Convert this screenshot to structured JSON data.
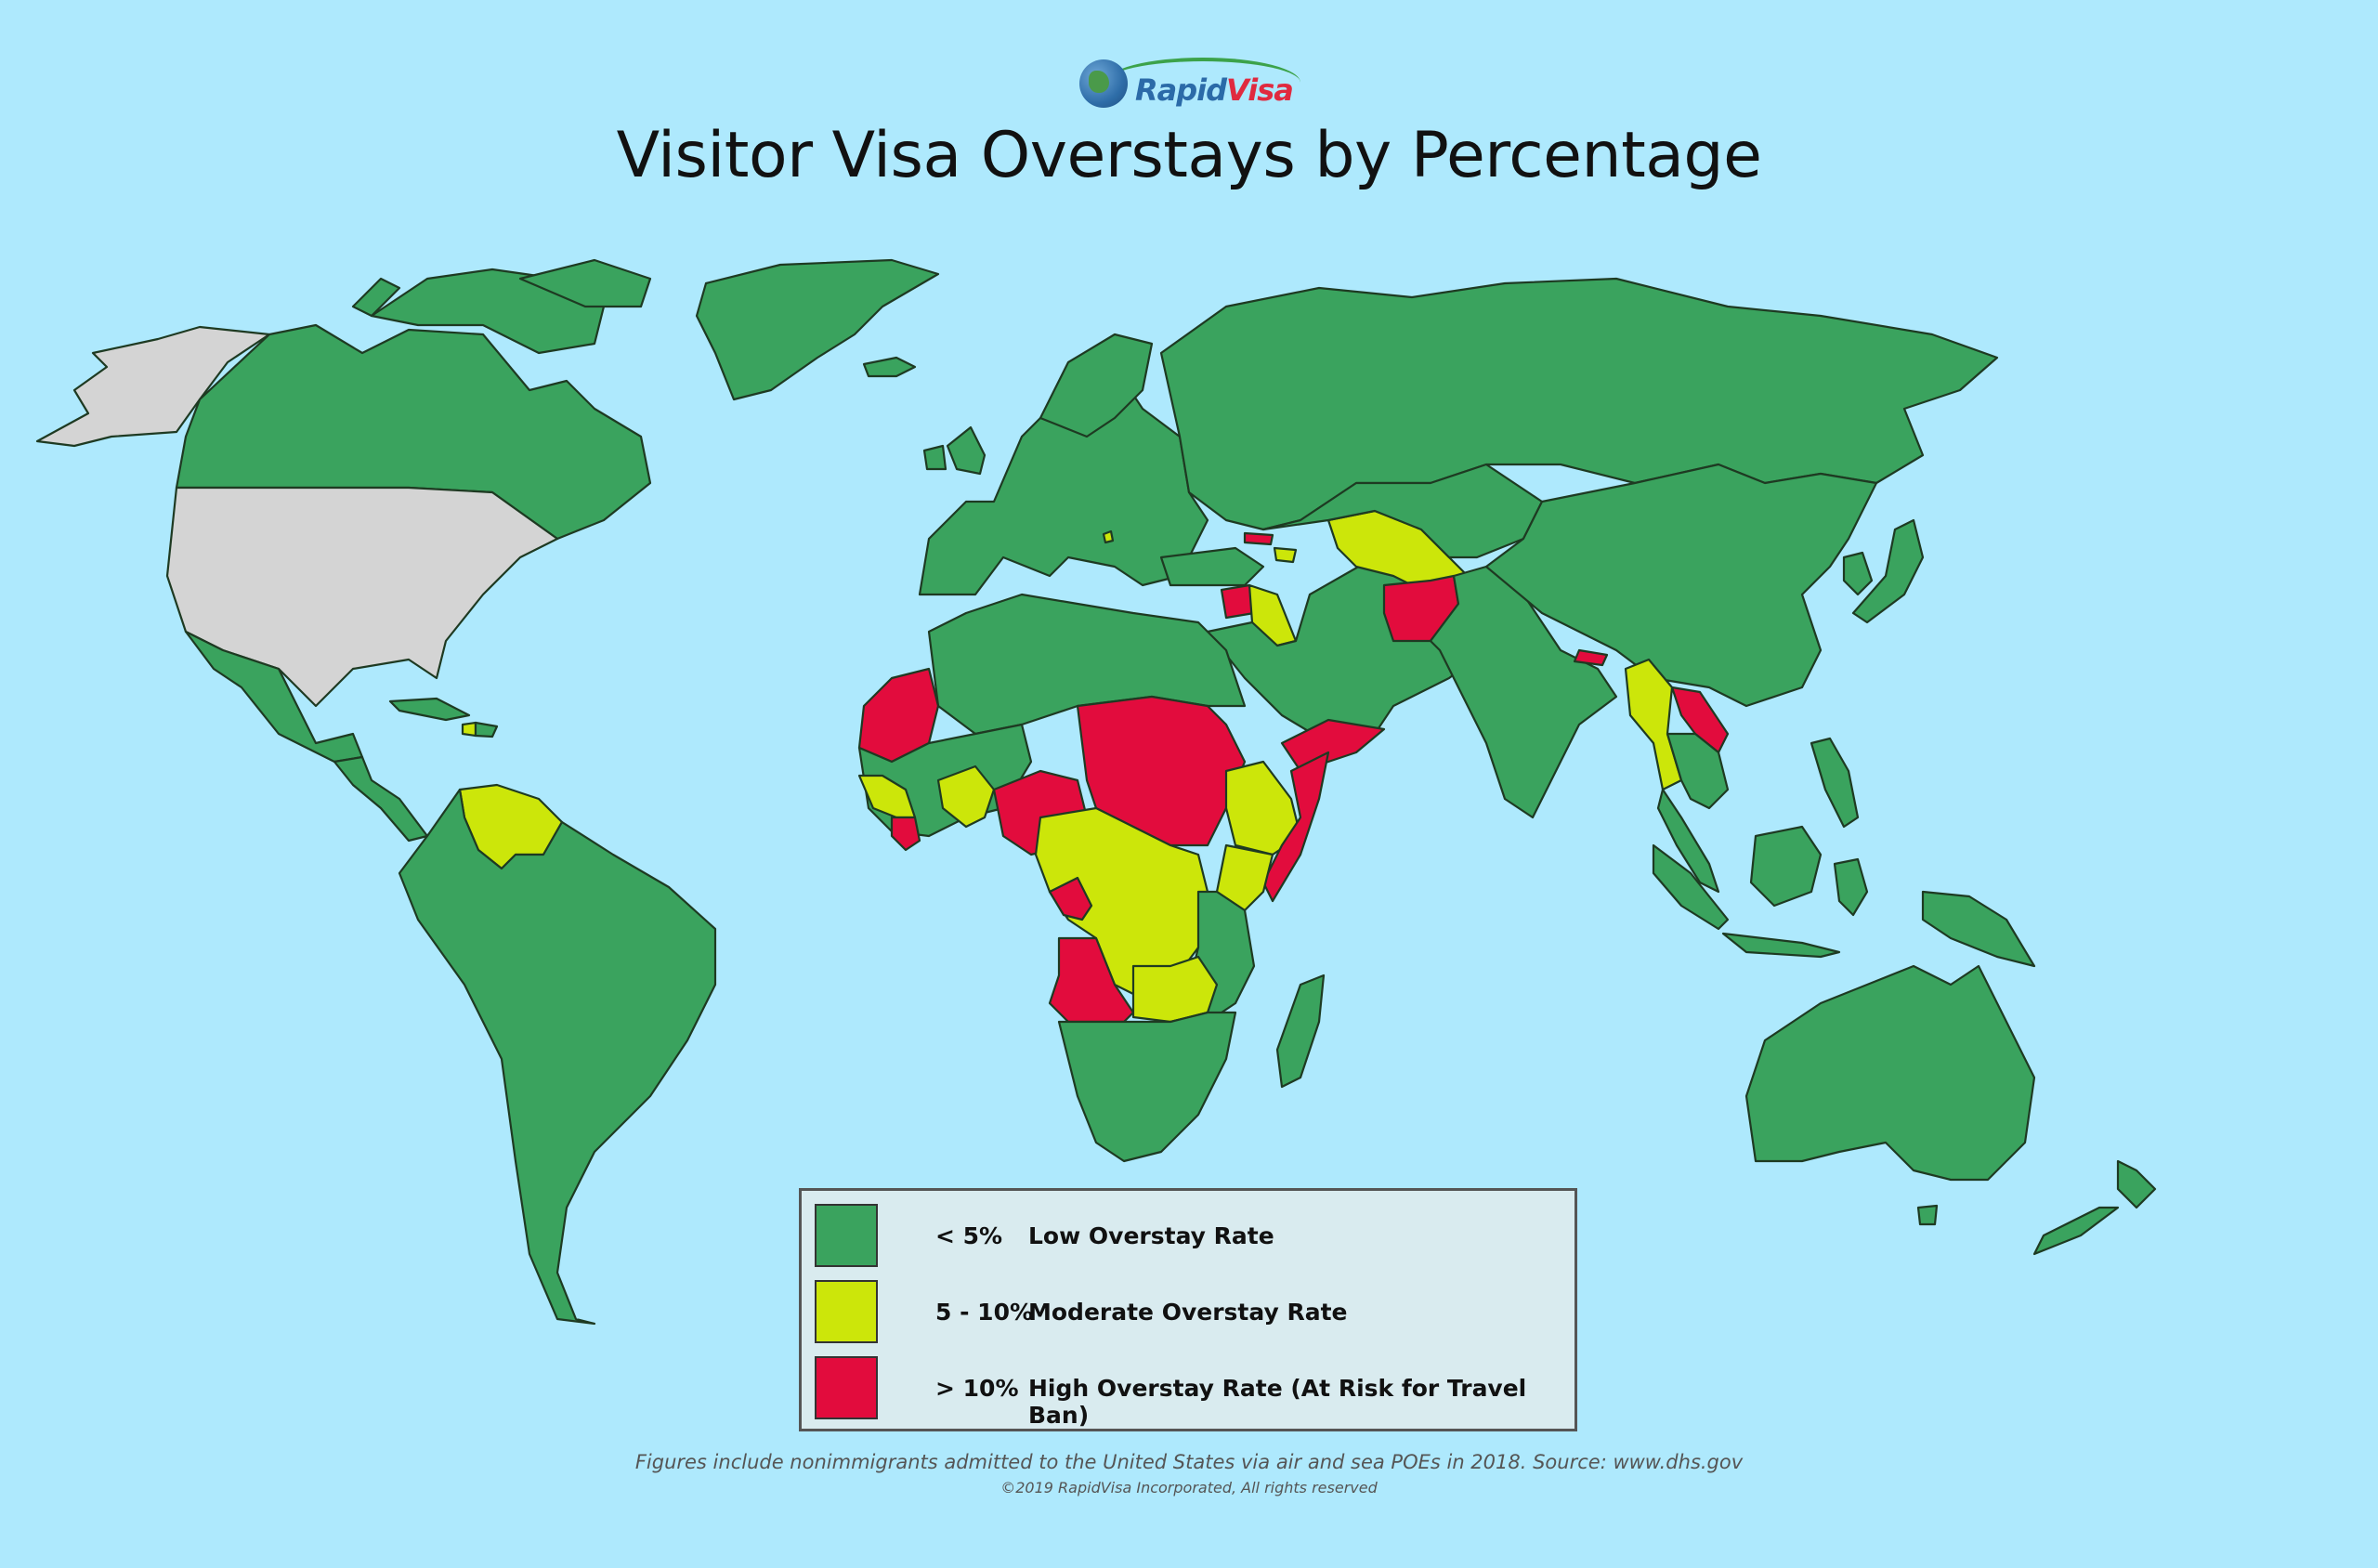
{
  "logo": {
    "text_part1": "Rapid",
    "text_part2": "Visa"
  },
  "title": "Visitor Visa Overstays by Percentage",
  "legend": [
    {
      "range": "< 5%",
      "label": "Low Overstay Rate",
      "color": "#3aa35e"
    },
    {
      "range": "5 - 10%",
      "label": "Moderate Overstay Rate",
      "color": "#cce60a"
    },
    {
      "range": "> 10%",
      "label": "High Overstay Rate (At Risk for Travel Ban)",
      "color": "#e20c3d"
    }
  ],
  "colors": {
    "ocean": "#aee9fd",
    "low": "#3aa35e",
    "moderate": "#cce60a",
    "high": "#e20c3d",
    "not_applicable": "#d4d4d4"
  },
  "footnote": "Figures include nonimmigrants admitted to the United States via air and sea POEs in 2018. Source: www.dhs.gov",
  "copyright": "©2019 RapidVisa Incorporated, All rights reserved"
}
